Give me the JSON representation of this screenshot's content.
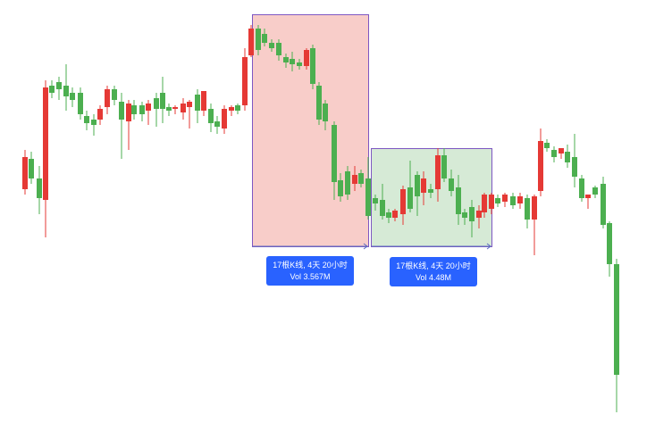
{
  "colors": {
    "up": "#4caf50",
    "down": "#e53935",
    "range_down_fill": "#f8cdc9",
    "range_up_fill": "#d6ead6",
    "range_border": "#7e57c2",
    "label_bg": "#2962ff",
    "label_text": "#ffffff"
  },
  "measurements": [
    {
      "bars_text": "17根K线, 4天 20小时",
      "volume_text": "Vol 3.567M",
      "direction": "down"
    },
    {
      "bars_text": "17根K线, 4天 20小时",
      "volume_text": "Vol 4.48M",
      "direction": "up"
    }
  ]
}
